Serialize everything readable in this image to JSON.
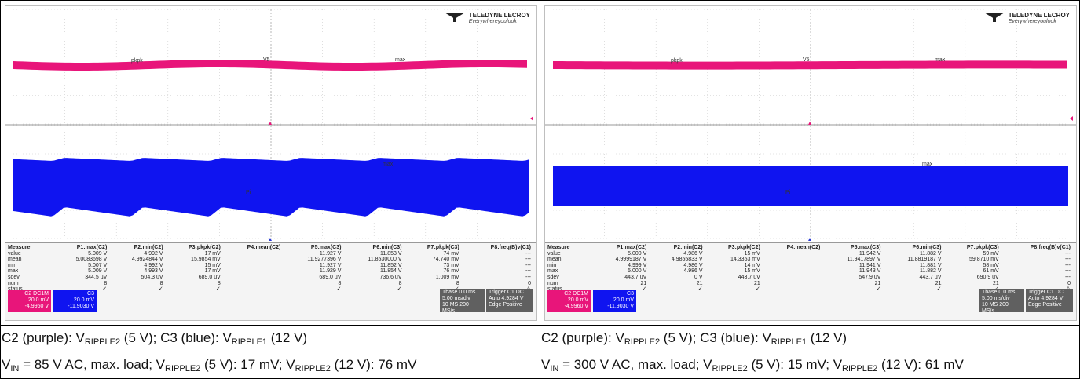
{
  "colors": {
    "c2_trace": "#e8157a",
    "c3_trace": "#0f14f0",
    "grid": "#c8c8c8"
  },
  "panels": [
    {
      "logo": {
        "brand": "TELEDYNE LECROY",
        "tagline": "Everywhereyoulook"
      },
      "trace_labels": {
        "c2_a": "pkpk",
        "c2_b": "V5",
        "c2_c": "max",
        "c3_a": "max",
        "c3_b": "Pi"
      },
      "measure": {
        "header": [
          "Measure",
          "P1:max(C2)",
          "P2:min(C2)",
          "P3:pkpk(C2)",
          "P4:mean(C2)",
          "P5:max(C3)",
          "P6:min(C3)",
          "P7:pkpk(C3)",
          "P8:freq(B)v(C1)"
        ],
        "rows": [
          [
            "value",
            "5.009 V",
            "4.992 V",
            "17 mV",
            "",
            "11.927 V",
            "11.853 V",
            "74 mV",
            "---"
          ],
          [
            "mean",
            "5.0083698 V",
            "4.9924844 V",
            "15.9854 mV",
            "",
            "11.9277396 V",
            "11.8530000 V",
            "74.740 mV",
            "---"
          ],
          [
            "min",
            "5.007 V",
            "4.992 V",
            "15 mV",
            "",
            "11.927 V",
            "11.852 V",
            "73 mV",
            "---"
          ],
          [
            "max",
            "5.009 V",
            "4.993 V",
            "17 mV",
            "",
            "11.929 V",
            "11.854 V",
            "76 mV",
            "---"
          ],
          [
            "sdev",
            "344.5 uV",
            "504.3 uV",
            "689.0 uV",
            "",
            "689.0 uV",
            "736.6 uV",
            "1.009 mV",
            "---"
          ],
          [
            "num",
            "8",
            "8",
            "8",
            "",
            "8",
            "8",
            "8",
            "0"
          ],
          [
            "status",
            "✓",
            "✓",
            "✓",
            "",
            "✓",
            "✓",
            "✓",
            "⚠"
          ]
        ]
      },
      "channels": {
        "c2": {
          "name": "C2",
          "coupling": "DC1M",
          "scale": "20.0 mV",
          "offset": "-4.9960 V"
        },
        "c3": {
          "name": "C3",
          "coupling": "",
          "scale": "20.0 mV",
          "offset": "-11.9030 V"
        }
      },
      "timebase": {
        "label": "Tbase",
        "delay": "0.0 ms",
        "div": "5.00 ms/div",
        "samples": "10 MS",
        "rate": "200 MS/s"
      },
      "trigger": {
        "label": "Trigger",
        "source": "C1 DC",
        "mode": "Auto",
        "level": "4.9284 V",
        "type": "Edge",
        "slope": "Positive"
      },
      "caption1": {
        "a": "C2 (purple): V",
        "a_sub": "RIPPLE2",
        "b": " (5 V); C3 (blue): V",
        "b_sub": "RIPPLE1",
        "c": " (12 V)"
      },
      "caption2": {
        "a": "V",
        "a_sub": "IN",
        "b": " = 85 V AC, max. load; V",
        "b_sub": "RIPPLE2",
        "c": " (5 V): 17 mV; V",
        "c_sub": "RIPPLE2",
        "d": " (12 V): 76 mV"
      }
    },
    {
      "logo": {
        "brand": "TELEDYNE LECROY",
        "tagline": "Everywhereyoulook"
      },
      "trace_labels": {
        "c2_a": "pkpk",
        "c2_b": "V5",
        "c2_c": "max",
        "c3_a": "max",
        "c3_b": "Pi"
      },
      "measure": {
        "header": [
          "Measure",
          "P1:max(C2)",
          "P2:min(C2)",
          "P3:pkpk(C2)",
          "P4:mean(C2)",
          "P5:max(C3)",
          "P6:min(C3)",
          "P7:pkpk(C3)",
          "P8:freq(B)v(C1)"
        ],
        "rows": [
          [
            "value",
            "5.000 V",
            "4.986 V",
            "15 mV",
            "",
            "11.942 V",
            "11.882 V",
            "59 mV",
            "---"
          ],
          [
            "mean",
            "4.9999187 V",
            "4.9855833 V",
            "14.3353 mV",
            "",
            "11.9417897 V",
            "11.8819187 V",
            "59.8710 mV",
            "---"
          ],
          [
            "min",
            "4.999 V",
            "4.986 V",
            "14 mV",
            "",
            "11.941 V",
            "11.881 V",
            "58 mV",
            "---"
          ],
          [
            "max",
            "5.000 V",
            "4.986 V",
            "15 mV",
            "",
            "11.943 V",
            "11.882 V",
            "61 mV",
            "---"
          ],
          [
            "sdev",
            "443.7 uV",
            "0 V",
            "443.7 uV",
            "",
            "547.9 uV",
            "443.7 uV",
            "690.9 uV",
            "---"
          ],
          [
            "num",
            "21",
            "21",
            "21",
            "",
            "21",
            "21",
            "21",
            "0"
          ],
          [
            "status",
            "✓",
            "✓",
            "✓",
            "",
            "✓",
            "✓",
            "✓",
            "⚠"
          ]
        ]
      },
      "channels": {
        "c2": {
          "name": "C2",
          "coupling": "DC1M",
          "scale": "20.0 mV",
          "offset": "-4.9960 V"
        },
        "c3": {
          "name": "C3",
          "coupling": "",
          "scale": "20.0 mV",
          "offset": "-11.9030 V"
        }
      },
      "timebase": {
        "label": "Tbase",
        "delay": "0.0 ms",
        "div": "5.00 ms/div",
        "samples": "10 MS",
        "rate": "200 MS/s"
      },
      "trigger": {
        "label": "Trigger",
        "source": "C1 DC",
        "mode": "Auto",
        "level": "4.9284 V",
        "type": "Edge",
        "slope": "Positive"
      },
      "caption1": {
        "a": "C2 (purple): V",
        "a_sub": "RIPPLE2",
        "b": " (5 V); C3 (blue): V",
        "b_sub": "RIPPLE1",
        "c": " (12 V)"
      },
      "caption2": {
        "a": "V",
        "a_sub": "IN",
        "b": " = 300 V AC, max. load; V",
        "b_sub": "RIPPLE2",
        "c": " (5 V): 15 mV; V",
        "c_sub": "RIPPLE2",
        "d": " (12 V): 61 mV"
      }
    }
  ]
}
